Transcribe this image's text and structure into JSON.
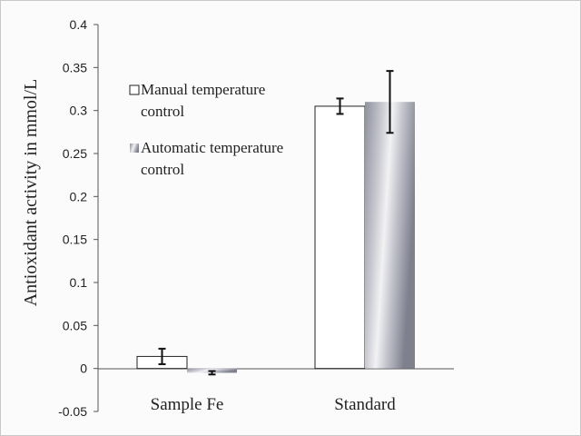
{
  "chart_data": {
    "type": "bar",
    "title": "",
    "xlabel": "",
    "ylabel": "Antioxidant activity in mmol/L",
    "ylim": [
      -0.05,
      0.4
    ],
    "yticks": [
      "0.4",
      "0.35",
      "0.3",
      "0.25",
      "0.2",
      "0.15",
      "0.1",
      "0.05",
      "0",
      "-0.05"
    ],
    "categories": [
      "Sample Fe",
      "Standard"
    ],
    "series": [
      {
        "name": "Manual temperature control",
        "name_lines": [
          "Manual temperature",
          "control"
        ],
        "values": [
          0.014,
          0.305
        ],
        "errors": [
          0.009,
          0.009
        ],
        "color": "#ffffff"
      },
      {
        "name": "Automatic temperature control",
        "name_lines": [
          "Automatic temperature",
          "control"
        ],
        "values": [
          -0.005,
          0.31
        ],
        "errors": [
          0.002,
          0.036
        ],
        "color": "#9a9ca8"
      }
    ],
    "grid": false,
    "legend_position": "left-top inside"
  }
}
